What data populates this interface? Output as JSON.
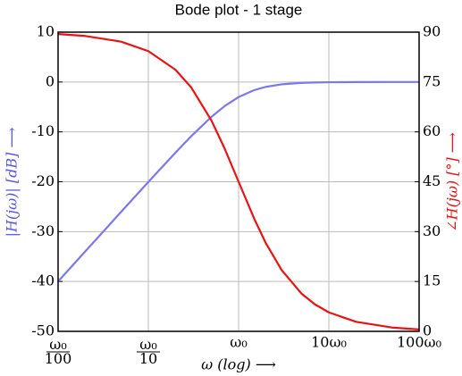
{
  "chart_data": {
    "type": "line",
    "title": "Bode plot - 1 stage",
    "xlabel": "ω (log) ⟶",
    "ylabel": "|H(jω)| [dB] ⟶",
    "y2label": "∠H(jω) [°] ⟶",
    "xscale": "log",
    "grid": true,
    "x": [
      0.01,
      0.02,
      0.05,
      0.1,
      0.2,
      0.3,
      0.5,
      0.7,
      1,
      1.5,
      2,
      3,
      5,
      7,
      10,
      20,
      50,
      100
    ],
    "xlim": [
      0.01,
      100
    ],
    "xticks": [
      {
        "value": 0.01,
        "label": "ω₀/100"
      },
      {
        "value": 0.1,
        "label": "ω₀/10"
      },
      {
        "value": 1,
        "label": "ω₀"
      },
      {
        "value": 10,
        "label": "10ω₀"
      },
      {
        "value": 100,
        "label": "100ω₀"
      }
    ],
    "ylim": [
      -50,
      10
    ],
    "yticks": [
      -50,
      -40,
      -30,
      -20,
      -10,
      0,
      10
    ],
    "y2lim": [
      0,
      90
    ],
    "y2ticks": [
      0,
      15,
      30,
      45,
      60,
      75,
      90
    ],
    "series": [
      {
        "name": "|H(jω)|",
        "color": "#7878f0",
        "values": [
          -40.0,
          -33.98,
          -26.03,
          -20.04,
          -14.15,
          -10.83,
          -6.99,
          -4.83,
          -3.01,
          -1.6,
          -0.97,
          -0.46,
          -0.17,
          -0.09,
          -0.04,
          -0.01,
          0.0,
          0.0
        ]
      },
      {
        "name": "∠H(jω)",
        "color": "#ee1111",
        "axis": "y2",
        "values": [
          89.43,
          88.85,
          87.14,
          84.29,
          78.69,
          73.3,
          63.43,
          55.01,
          45,
          33.69,
          26.57,
          18.43,
          11.31,
          8.13,
          5.71,
          2.86,
          1.15,
          0.57
        ]
      }
    ]
  }
}
